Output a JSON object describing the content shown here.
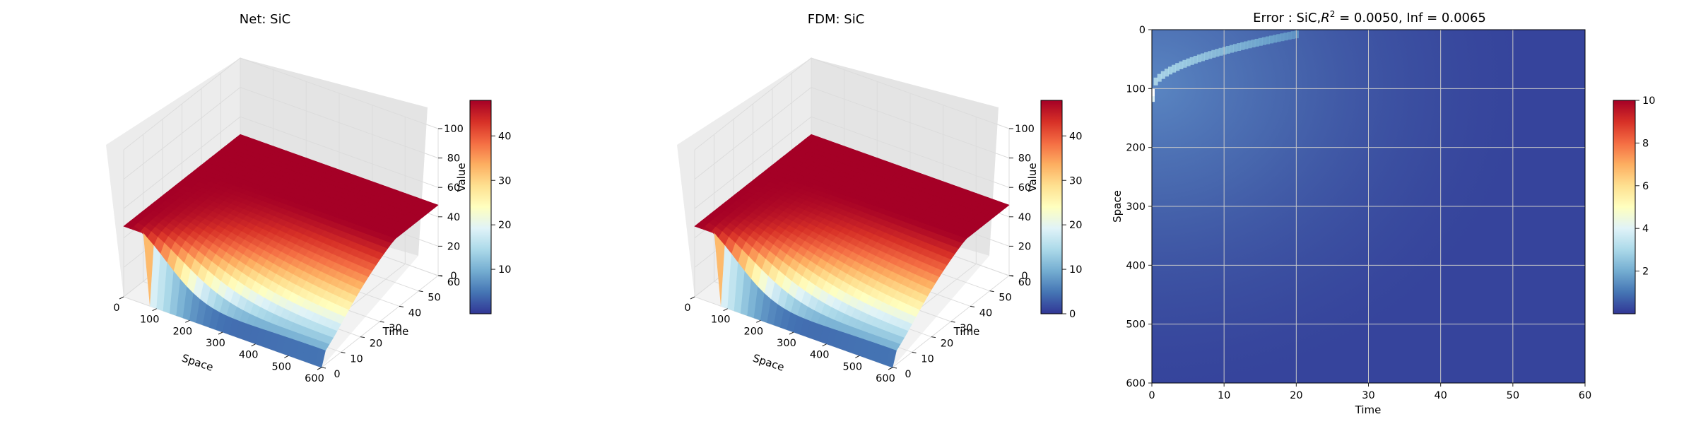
{
  "colors": {
    "colormap": [
      "#313695",
      "#4575b4",
      "#74add1",
      "#abd9e9",
      "#e0f3f8",
      "#ffffbf",
      "#fee090",
      "#fdae61",
      "#f46d43",
      "#d73027",
      "#a50026"
    ],
    "pane_left": "#ececec",
    "pane_right": "#e4e4e4",
    "pane_floor": "#f2f2f2",
    "heatmap_background": "#36449c",
    "heatmap_grid": "#c8c8c8"
  },
  "chart_data": [
    {
      "type": "surface",
      "title": "Net: SiC",
      "xlabel": "Space",
      "ylabel": "Time",
      "zlabel": "Value",
      "xlim": [
        0,
        600
      ],
      "ylim": [
        0,
        60
      ],
      "zlim": [
        0,
        100
      ],
      "xticks": [
        "0",
        "100",
        "200",
        "300",
        "400",
        "500",
        "600"
      ],
      "yticks": [
        "0",
        "10",
        "20",
        "30",
        "40",
        "50",
        "60"
      ],
      "zticks": [
        "0",
        "20",
        "40",
        "60",
        "80",
        "100"
      ],
      "colorbar": {
        "ticks": [
          "10",
          "20",
          "30",
          "40"
        ],
        "range": [
          0,
          48
        ]
      },
      "max_value": 48
    },
    {
      "type": "surface",
      "title": "FDM: SiC",
      "xlabel": "Space",
      "ylabel": "Time",
      "zlabel": "Value",
      "xlim": [
        0,
        600
      ],
      "ylim": [
        0,
        60
      ],
      "zlim": [
        0,
        100
      ],
      "xticks": [
        "0",
        "100",
        "200",
        "300",
        "400",
        "500",
        "600"
      ],
      "yticks": [
        "0",
        "10",
        "20",
        "30",
        "40",
        "50",
        "60"
      ],
      "zticks": [
        "0",
        "20",
        "40",
        "60",
        "80",
        "100"
      ],
      "colorbar": {
        "ticks": [
          "0",
          "10",
          "20",
          "30",
          "40"
        ],
        "range": [
          0,
          48
        ]
      },
      "max_value": 48
    },
    {
      "type": "heatmap",
      "title_prefix": "Error : SiC,",
      "title_r": "R",
      "title_sup": "2",
      "title_suffix": " = 0.0050, Inf = 0.0065",
      "xlabel": "Time",
      "ylabel": "Space",
      "xlim": [
        0,
        60
      ],
      "ylim": [
        600,
        0
      ],
      "xticks": [
        "0",
        "10",
        "20",
        "30",
        "40",
        "50",
        "60"
      ],
      "yticks": [
        "0",
        "100",
        "200",
        "300",
        "400",
        "500",
        "600"
      ],
      "colorbar": {
        "ticks": [
          "2",
          "4",
          "6",
          "8",
          "10"
        ],
        "range": [
          0,
          10
        ]
      },
      "grid": true
    }
  ]
}
